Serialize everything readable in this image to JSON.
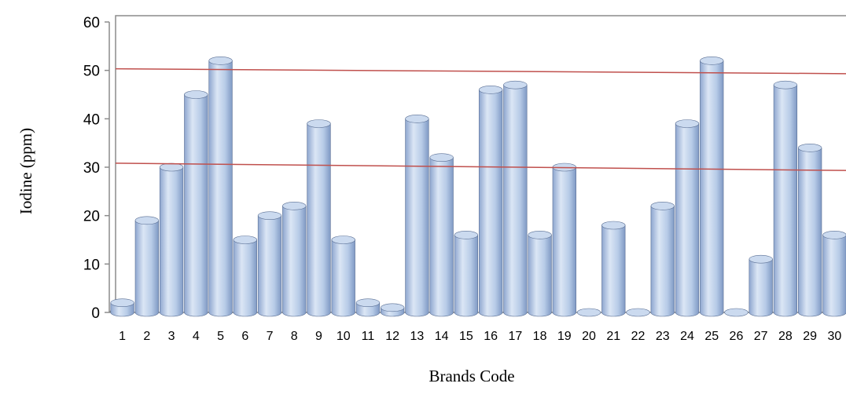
{
  "chart_data": {
    "type": "bar",
    "xlabel": "Brands Code",
    "ylabel": "Iodine (ppm)",
    "ylim": [
      0,
      60
    ],
    "yticks": [
      0,
      10,
      20,
      30,
      40,
      50,
      60
    ],
    "grid": false,
    "categories": [
      "1",
      "2",
      "3",
      "4",
      "5",
      "6",
      "7",
      "8",
      "9",
      "10",
      "11",
      "12",
      "13",
      "14",
      "15",
      "16",
      "17",
      "18",
      "19",
      "20",
      "21",
      "22",
      "23",
      "24",
      "25",
      "26",
      "27",
      "28",
      "29",
      "30"
    ],
    "values": [
      2,
      19,
      30,
      45,
      52,
      15,
      20,
      22,
      39,
      15,
      2,
      1,
      40,
      32,
      16,
      46,
      47,
      16,
      30,
      0,
      18,
      0,
      22,
      39,
      52,
      0,
      11,
      47,
      34,
      16
    ],
    "reference_lines": [
      {
        "y_start": 50,
        "y_end": 49
      },
      {
        "y_start": 30.5,
        "y_end": 29
      }
    ],
    "colors": {
      "bar_light": "#dde8f6",
      "bar_mid": "#b3c8e6",
      "bar_dark": "#7f99c4",
      "bar_top": "#cbdaef",
      "bar_edge": "#5a6f94",
      "reference_line": "#c0504d",
      "axis": "#8c8c8c"
    }
  }
}
